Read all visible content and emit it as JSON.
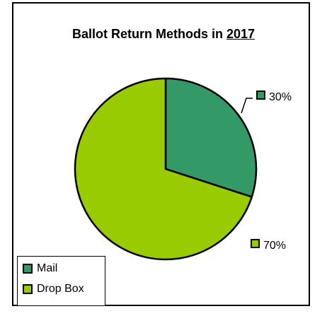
{
  "chart_data": {
    "type": "pie",
    "title_prefix": "Ballot Return Methods in ",
    "title_year": "2017",
    "categories": [
      "Mail",
      "Drop Box"
    ],
    "values": [
      30,
      70
    ],
    "labels": [
      "30%",
      "70%"
    ],
    "colors": [
      "#339966",
      "#99cc00"
    ],
    "legend_position": "bottom-left"
  }
}
